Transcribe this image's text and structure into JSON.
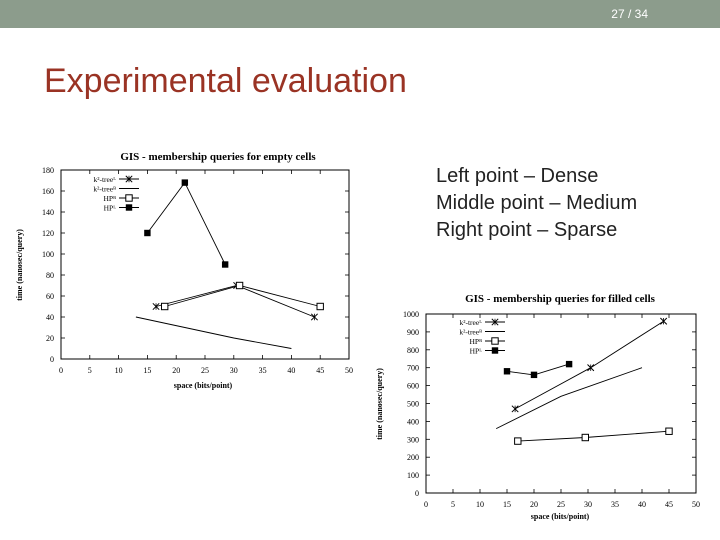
{
  "header": {
    "page_indicator": "27 / 34"
  },
  "slide": {
    "title": "Experimental evaluation",
    "notes": [
      "Left point – Dense",
      "Middle point – Medium",
      "Right point – Sparse"
    ]
  },
  "colors": {
    "topbar": "#8c9c8c",
    "title": "#9a3324"
  },
  "chart_data": [
    {
      "type": "line",
      "title": "GIS - membership queries for empty cells",
      "xlabel": "space (bits/point)",
      "ylabel": "time (nanosec/query)",
      "xlim": [
        0,
        50
      ],
      "ylim": [
        0,
        180
      ],
      "xticks": [
        "0",
        "5",
        "10",
        "15",
        "20",
        "25",
        "30",
        "35",
        "40",
        "45",
        "50"
      ],
      "yticks": [
        "0",
        "20",
        "40",
        "60",
        "80",
        "100",
        "120",
        "140",
        "160",
        "180"
      ],
      "legend_position": "top-left",
      "grid": false,
      "series": [
        {
          "name": "k²-treeᴸ",
          "marker": "x",
          "x": [
            16.5,
            30.5,
            44
          ],
          "y": [
            50,
            70,
            40
          ]
        },
        {
          "name": "k²-treeᴮ",
          "marker": "none",
          "x": [
            13,
            30,
            40
          ],
          "y": [
            40,
            20,
            10
          ]
        },
        {
          "name": "HPᴮ",
          "marker": "open-square",
          "x": [
            18,
            31,
            45
          ],
          "y": [
            50,
            70,
            50
          ]
        },
        {
          "name": "HPᴸ",
          "marker": "filled-square",
          "x": [
            15,
            21.5,
            28.5
          ],
          "y": [
            120,
            168,
            90
          ]
        }
      ]
    },
    {
      "type": "line",
      "title": "GIS - membership queries for filled cells",
      "xlabel": "space (bits/point)",
      "ylabel": "time (nanosec/query)",
      "xlim": [
        0,
        50
      ],
      "ylim": [
        0,
        1000
      ],
      "xticks": [
        "0",
        "5",
        "10",
        "15",
        "20",
        "25",
        "30",
        "35",
        "40",
        "45",
        "50"
      ],
      "yticks": [
        "0",
        "100",
        "200",
        "300",
        "400",
        "500",
        "600",
        "700",
        "800",
        "900",
        "1000"
      ],
      "legend_position": "top-left",
      "grid": false,
      "series": [
        {
          "name": "k²-treeᴸ",
          "marker": "x",
          "x": [
            16.5,
            30.5,
            44
          ],
          "y": [
            470,
            700,
            960
          ]
        },
        {
          "name": "k²-treeᴮ",
          "marker": "none",
          "x": [
            13,
            25,
            40
          ],
          "y": [
            360,
            540,
            700
          ]
        },
        {
          "name": "HPᴮ",
          "marker": "open-square",
          "x": [
            17,
            29.5,
            45
          ],
          "y": [
            290,
            310,
            345
          ]
        },
        {
          "name": "HPᴸ",
          "marker": "filled-square",
          "x": [
            15,
            20,
            26.5
          ],
          "y": [
            680,
            660,
            720
          ]
        }
      ]
    }
  ]
}
